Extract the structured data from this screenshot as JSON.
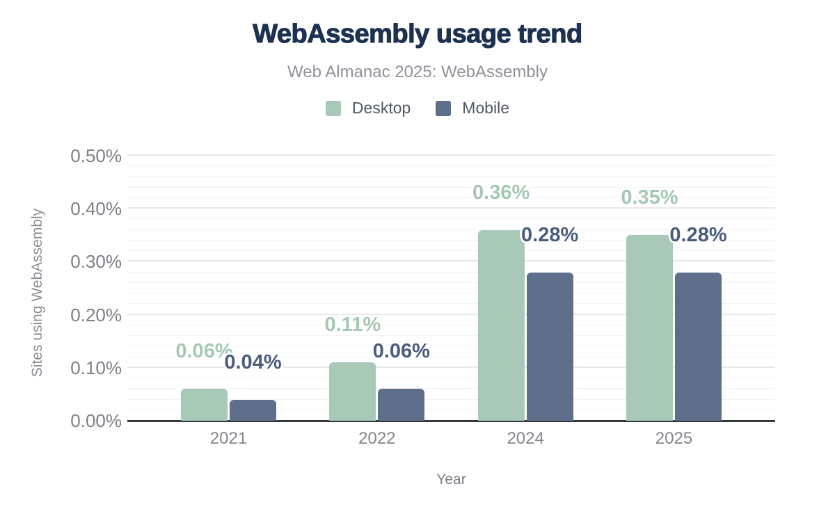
{
  "header": {
    "title": "WebAssembly usage trend",
    "subtitle": "Web Almanac 2025: WebAssembly"
  },
  "legend": {
    "items": [
      {
        "label": "Desktop",
        "color": "#a8c9b8"
      },
      {
        "label": "Mobile",
        "color": "#5f6f8b"
      }
    ]
  },
  "chart_data": {
    "type": "bar",
    "title": "WebAssembly usage trend",
    "subtitle": "Web Almanac 2025: WebAssembly",
    "categories": [
      "2021",
      "2022",
      "2024",
      "2025"
    ],
    "series": [
      {
        "name": "Desktop",
        "color": "#a8c9b8",
        "label_color": "#a5c8b6",
        "values": [
          0.06,
          0.11,
          0.36,
          0.35
        ],
        "labels": [
          "0.06%",
          "0.11%",
          "0.36%",
          "0.35%"
        ]
      },
      {
        "name": "Mobile",
        "color": "#5f6f8b",
        "label_color": "#4a5c7e",
        "values": [
          0.04,
          0.06,
          0.28,
          0.28
        ],
        "labels": [
          "0.04%",
          "0.06%",
          "0.28%",
          "0.28%"
        ]
      }
    ],
    "xlabel": "Year",
    "ylabel": "Sites using WebAssembly",
    "ylim": [
      0,
      0.5
    ],
    "y_major_step": 0.1,
    "y_minor_step": 0.02,
    "y_tick_labels": [
      "0.00%",
      "0.10%",
      "0.20%",
      "0.30%",
      "0.40%",
      "0.50%"
    ],
    "grid": true,
    "legend_position": "top"
  },
  "colors": {
    "title": "#1d3150",
    "subtitle": "#8e929a",
    "axis_title": "#797e85",
    "tick_label": "#7e838a",
    "legend_label": "#53585f",
    "baseline": "#34383d",
    "grid_major": "#e8e8eb",
    "grid_minor": "#f3f3f5",
    "background": "#ffffff"
  }
}
